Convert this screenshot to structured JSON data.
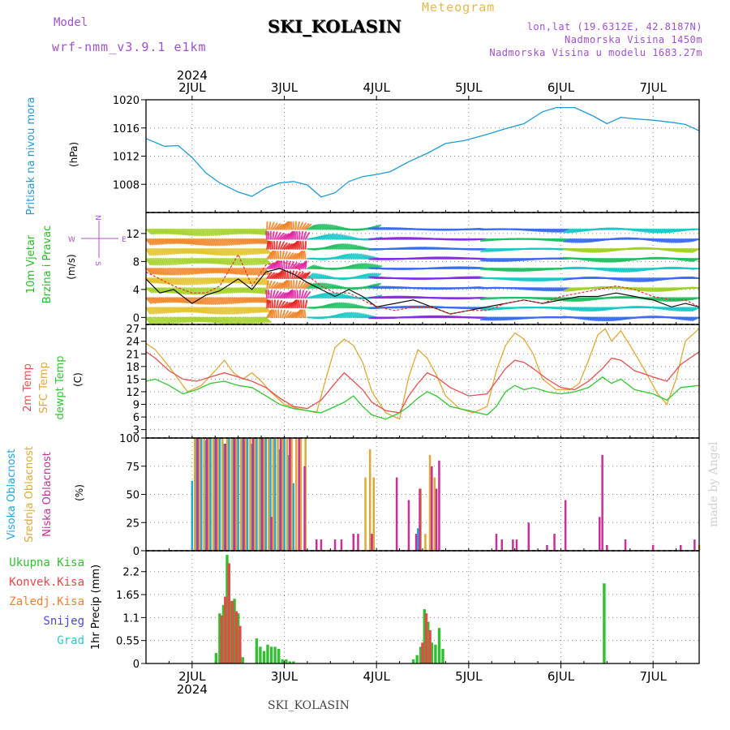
{
  "header": {
    "title": "SKI_KOLASIN",
    "subtitle": "Meteogram",
    "model_label": "Model",
    "model_name": "wrf-nmm_v3.9.1 e1km",
    "coords": "lon,lat (19.6312E, 42.8187N)",
    "elevation": "Nadmorska Visina 1450m",
    "model_elevation": "Nadmorska Visina u modelu 1683.27m",
    "footer_station": "SKI_KOLASIN",
    "watermark": "made by Angel"
  },
  "time_axis": {
    "start_day": 1.5,
    "end_day": 7.5,
    "ticks": [
      2,
      3,
      4,
      5,
      6,
      7
    ],
    "tick_labels": [
      "2JUL",
      "3JUL",
      "4JUL",
      "5JUL",
      "6JUL",
      "7JUL"
    ],
    "year_label": "2024"
  },
  "chart_data": [
    {
      "type": "line",
      "panel": "pressure",
      "ylabel": "Pritisak na nivou mora",
      "unit": "(hPa)",
      "ylim": [
        1004,
        1020
      ],
      "yticks": [
        1008,
        1012,
        1016,
        1020
      ],
      "series": [
        {
          "color": "#1e9bd7",
          "x": [
            1.5,
            1.7,
            1.85,
            2.0,
            2.15,
            2.3,
            2.5,
            2.65,
            2.8,
            2.95,
            3.1,
            3.25,
            3.4,
            3.55,
            3.7,
            3.85,
            4.0,
            4.15,
            4.35,
            4.55,
            4.75,
            4.95,
            5.2,
            5.4,
            5.6,
            5.8,
            5.95,
            6.15,
            6.35,
            6.5,
            6.65,
            6.8,
            7.0,
            7.2,
            7.35,
            7.5
          ],
          "y": [
            1014.5,
            1013.4,
            1013.5,
            1011.8,
            1009.6,
            1008.2,
            1006.9,
            1006.3,
            1007.5,
            1008.2,
            1008.4,
            1007.9,
            1006.2,
            1006.8,
            1008.4,
            1009.1,
            1009.4,
            1009.8,
            1011.2,
            1012.4,
            1013.8,
            1014.2,
            1015.1,
            1015.9,
            1016.6,
            1018.3,
            1018.9,
            1018.9,
            1017.7,
            1016.6,
            1017.5,
            1017.3,
            1017.1,
            1016.8,
            1016.5,
            1015.6
          ]
        }
      ]
    },
    {
      "type": "line",
      "panel": "wind",
      "ylabel": "10m Vjetar Brzina i Pravac",
      "unit": "(m/s)",
      "ylim": [
        -1,
        15
      ],
      "yticks": [
        0,
        4,
        8,
        12
      ],
      "compass": [
        "W",
        "N",
        "E",
        "S"
      ],
      "series": [
        {
          "name": "speed",
          "color": "#111111",
          "x": [
            1.5,
            1.65,
            1.8,
            2.0,
            2.15,
            2.3,
            2.5,
            2.65,
            2.8,
            2.95,
            3.1,
            3.25,
            3.4,
            3.55,
            3.7,
            3.85,
            4.0,
            4.2,
            4.4,
            4.6,
            4.8,
            5.0,
            5.2,
            5.4,
            5.6,
            5.8,
            6.0,
            6.2,
            6.4,
            6.6,
            6.8,
            7.0,
            7.2,
            7.35,
            7.5
          ],
          "y": [
            5.5,
            3.5,
            4.0,
            2.0,
            3.2,
            3.8,
            5.5,
            4.0,
            6.5,
            7.0,
            6.2,
            5.0,
            4.0,
            3.0,
            4.0,
            3.0,
            1.5,
            2.0,
            2.5,
            1.5,
            0.5,
            1.0,
            1.5,
            2.0,
            2.5,
            2.0,
            2.5,
            3.0,
            3.0,
            3.5,
            3.0,
            2.5,
            1.5,
            2.0,
            1.5
          ]
        },
        {
          "name": "gust",
          "color": "#e83030",
          "x": [
            1.5,
            1.65,
            1.8,
            2.0,
            2.15,
            2.3,
            2.5,
            2.65,
            2.8,
            2.95,
            3.1,
            3.25,
            3.4,
            3.55,
            3.7,
            3.85,
            4.0,
            4.2,
            4.4,
            4.6,
            4.8,
            5.0,
            5.2,
            5.4,
            5.6,
            5.8,
            6.0,
            6.2,
            6.4,
            6.6,
            6.8,
            7.0,
            7.2,
            7.35,
            7.5
          ],
          "y": [
            6.5,
            5.5,
            4.5,
            3.5,
            3.5,
            4.5,
            9.0,
            4.5,
            7.5,
            8.0,
            7.5,
            6.0,
            4.5,
            3.5,
            3.5,
            2.5,
            1.5,
            1.0,
            1.5,
            1.5,
            0.5,
            1.0,
            1.0,
            2.0,
            2.5,
            2.0,
            3.0,
            3.5,
            4.0,
            4.5,
            4.0,
            3.0,
            2.5,
            2.5,
            1.5
          ]
        }
      ]
    },
    {
      "type": "line",
      "panel": "temperature",
      "ylabel": "2m Temp / SFC Temp / dewpt Temp",
      "unit": "(C)",
      "ylim": [
        1,
        28
      ],
      "yticks": [
        3,
        6,
        9,
        12,
        15,
        18,
        21,
        24,
        27
      ],
      "series": [
        {
          "name": "SFC Temp",
          "color": "#e0a838",
          "x": [
            1.5,
            1.6,
            1.75,
            1.95,
            2.1,
            2.25,
            2.35,
            2.45,
            2.55,
            2.65,
            2.75,
            2.85,
            3.0,
            3.15,
            3.25,
            3.35,
            3.45,
            3.55,
            3.65,
            3.75,
            3.85,
            3.95,
            4.1,
            4.25,
            4.35,
            4.45,
            4.55,
            4.65,
            4.75,
            4.9,
            5.05,
            5.2,
            5.3,
            5.4,
            5.5,
            5.6,
            5.7,
            5.8,
            5.95,
            6.1,
            6.2,
            6.3,
            6.4,
            6.48,
            6.55,
            6.65,
            6.75,
            6.9,
            7.05,
            7.15,
            7.25,
            7.35,
            7.5
          ],
          "y": [
            23.5,
            22.0,
            18.0,
            12.0,
            13.5,
            17.0,
            19.5,
            16.5,
            15.0,
            16.5,
            14.5,
            12.0,
            9.0,
            8.0,
            7.5,
            7.0,
            15.0,
            22.5,
            24.5,
            23.0,
            19.0,
            12.0,
            7.0,
            5.5,
            15.5,
            22.0,
            20.0,
            16.0,
            11.0,
            8.0,
            7.0,
            8.5,
            17.0,
            23.0,
            26.0,
            24.5,
            21.0,
            15.0,
            12.5,
            12.5,
            14.0,
            19.5,
            25.5,
            27.0,
            24.0,
            26.5,
            23.0,
            17.5,
            11.5,
            9.0,
            15.0,
            24.0,
            27.0
          ]
        },
        {
          "name": "2m Temp",
          "color": "#e85050",
          "x": [
            1.5,
            1.6,
            1.75,
            1.9,
            2.05,
            2.2,
            2.35,
            2.5,
            2.65,
            2.8,
            2.95,
            3.1,
            3.25,
            3.4,
            3.55,
            3.65,
            3.75,
            3.85,
            3.95,
            4.1,
            4.25,
            4.35,
            4.45,
            4.55,
            4.65,
            4.8,
            5.0,
            5.2,
            5.3,
            5.4,
            5.5,
            5.6,
            5.7,
            5.85,
            6.0,
            6.15,
            6.3,
            6.45,
            6.55,
            6.65,
            6.8,
            7.0,
            7.15,
            7.3,
            7.5
          ],
          "y": [
            21.5,
            20.0,
            17.0,
            15.0,
            14.5,
            15.5,
            16.5,
            15.5,
            14.5,
            13.0,
            10.5,
            8.5,
            8.0,
            10.0,
            14.0,
            16.5,
            14.5,
            12.5,
            9.5,
            7.5,
            7.0,
            11.0,
            14.0,
            16.5,
            15.5,
            13.0,
            11.0,
            11.5,
            14.5,
            17.5,
            19.5,
            19.0,
            17.5,
            15.0,
            13.0,
            12.5,
            14.5,
            17.5,
            20.0,
            19.5,
            17.0,
            15.5,
            14.5,
            18.5,
            21.5
          ]
        },
        {
          "name": "dewpt Temp",
          "color": "#30c830",
          "x": [
            1.5,
            1.6,
            1.75,
            1.9,
            2.05,
            2.2,
            2.35,
            2.5,
            2.65,
            2.8,
            2.95,
            3.1,
            3.25,
            3.4,
            3.55,
            3.65,
            3.75,
            3.85,
            3.95,
            4.1,
            4.25,
            4.35,
            4.45,
            4.55,
            4.65,
            4.8,
            5.0,
            5.2,
            5.3,
            5.4,
            5.5,
            5.6,
            5.7,
            5.85,
            6.0,
            6.15,
            6.3,
            6.45,
            6.55,
            6.65,
            6.8,
            7.0,
            7.15,
            7.3,
            7.5
          ],
          "y": [
            14.5,
            15.0,
            13.5,
            11.5,
            12.5,
            14.0,
            14.5,
            13.5,
            13.0,
            11.0,
            9.0,
            8.0,
            7.5,
            7.0,
            8.5,
            9.5,
            11.0,
            8.5,
            6.5,
            5.5,
            7.0,
            8.5,
            10.5,
            12.0,
            11.0,
            8.5,
            7.5,
            6.5,
            8.5,
            12.0,
            13.5,
            12.5,
            13.0,
            12.0,
            11.5,
            12.0,
            13.0,
            15.5,
            14.0,
            15.0,
            12.5,
            11.5,
            10.0,
            13.0,
            13.5
          ]
        }
      ]
    },
    {
      "type": "bar",
      "panel": "clouds",
      "ylabel": "Visoka Oblacnost / Srednja Oblacnost / Niska Oblacnost",
      "unit": "(%)",
      "ylim": [
        0,
        100
      ],
      "yticks": [
        0,
        25,
        50,
        75,
        100
      ],
      "series": [
        {
          "name": "Visoka Oblacnost",
          "color": "#1ea8e0",
          "x": [
            2.0,
            2.05,
            2.1,
            2.15,
            2.2,
            2.25,
            2.3,
            2.35,
            2.4,
            2.45,
            2.5,
            2.55,
            2.6,
            2.65,
            2.7,
            2.75,
            2.8,
            2.85,
            2.9,
            2.95,
            3.0,
            3.05,
            3.1,
            4.45
          ],
          "y": [
            62,
            100,
            100,
            98,
            100,
            100,
            100,
            95,
            100,
            100,
            100,
            100,
            100,
            95,
            100,
            100,
            100,
            100,
            100,
            90,
            100,
            85,
            60,
            20
          ]
        },
        {
          "name": "Srednja Oblacnost",
          "color": "#e0a838",
          "x": [
            2.03,
            2.08,
            2.13,
            2.18,
            2.23,
            2.28,
            2.33,
            2.38,
            2.43,
            2.48,
            2.53,
            2.58,
            2.63,
            2.68,
            2.73,
            2.78,
            2.83,
            2.88,
            2.93,
            2.98,
            3.03,
            3.08,
            3.13,
            3.18,
            3.23,
            3.88,
            3.93,
            3.97,
            4.48,
            4.53,
            4.58,
            4.63,
            7.5
          ],
          "y": [
            100,
            100,
            100,
            100,
            100,
            100,
            100,
            100,
            100,
            100,
            100,
            100,
            100,
            100,
            100,
            100,
            100,
            100,
            100,
            100,
            100,
            100,
            100,
            100,
            100,
            65,
            90,
            65,
            55,
            15,
            85,
            65,
            5
          ]
        },
        {
          "name": "Niska Oblacnost",
          "color": "#c83098",
          "x": [
            2.06,
            2.16,
            2.26,
            2.36,
            2.46,
            2.56,
            2.66,
            2.76,
            2.86,
            2.96,
            3.06,
            3.16,
            3.22,
            3.35,
            3.4,
            3.55,
            3.62,
            3.75,
            3.8,
            3.95,
            4.22,
            4.35,
            4.43,
            4.47,
            4.6,
            4.65,
            4.68,
            5.3,
            5.36,
            5.48,
            5.52,
            5.65,
            5.85,
            5.93,
            6.05,
            6.42,
            6.45,
            6.5,
            6.7,
            7.0,
            7.3,
            7.45
          ],
          "y": [
            100,
            100,
            100,
            95,
            100,
            100,
            100,
            100,
            30,
            100,
            100,
            100,
            75,
            10,
            10,
            10,
            10,
            15,
            15,
            15,
            65,
            45,
            15,
            55,
            75,
            55,
            80,
            15,
            10,
            10,
            10,
            25,
            5,
            15,
            45,
            30,
            85,
            5,
            10,
            5,
            5,
            10
          ]
        }
      ]
    },
    {
      "type": "bar",
      "panel": "precip",
      "ylabel": "1hr Precip",
      "unit": "(mm)",
      "ylim": [
        0,
        2.7
      ],
      "yticks": [
        0,
        0.55,
        1.1,
        1.65,
        2.2
      ],
      "ytick_labels": [
        "0",
        "0.55",
        "1.1",
        "1.65",
        "2.2"
      ],
      "legend": [
        {
          "label": "Ukupna Kisa",
          "color": "#30c030"
        },
        {
          "label": "Konvek.Kisa",
          "color": "#e84848"
        },
        {
          "label": "Zaledj.Kisa",
          "color": "#f08030"
        },
        {
          "label": "Snijeg",
          "color": "#4848e0"
        },
        {
          "label": "Grad",
          "color": "#30c8c8"
        }
      ],
      "series": [
        {
          "name": "Ukupna Kisa",
          "color": "#30c030",
          "x": [
            2.26,
            2.3,
            2.34,
            2.38,
            2.42,
            2.46,
            2.5,
            2.55,
            2.7,
            2.74,
            2.78,
            2.82,
            2.86,
            2.9,
            2.94,
            2.98,
            3.02,
            3.06,
            3.1,
            4.4,
            4.44,
            4.48,
            4.52,
            4.56,
            4.6,
            4.64,
            4.68,
            4.72,
            6.47
          ],
          "y": [
            0.25,
            1.2,
            1.4,
            2.6,
            1.5,
            1.55,
            1.2,
            0.15,
            0.6,
            0.4,
            0.3,
            0.45,
            0.4,
            0.4,
            0.35,
            0.1,
            0.1,
            0.05,
            0.05,
            0.1,
            0.2,
            0.4,
            1.3,
            1.0,
            0.5,
            0.45,
            0.85,
            0.35,
            1.92
          ]
        },
        {
          "name": "Konvek.Kisa",
          "color": "#e84848",
          "x": [
            2.32,
            2.36,
            2.4,
            2.44,
            2.48,
            2.52,
            4.5,
            4.54,
            4.58
          ],
          "y": [
            1.15,
            1.6,
            2.4,
            1.5,
            1.25,
            0.9,
            0.5,
            1.2,
            0.8
          ]
        }
      ]
    }
  ]
}
